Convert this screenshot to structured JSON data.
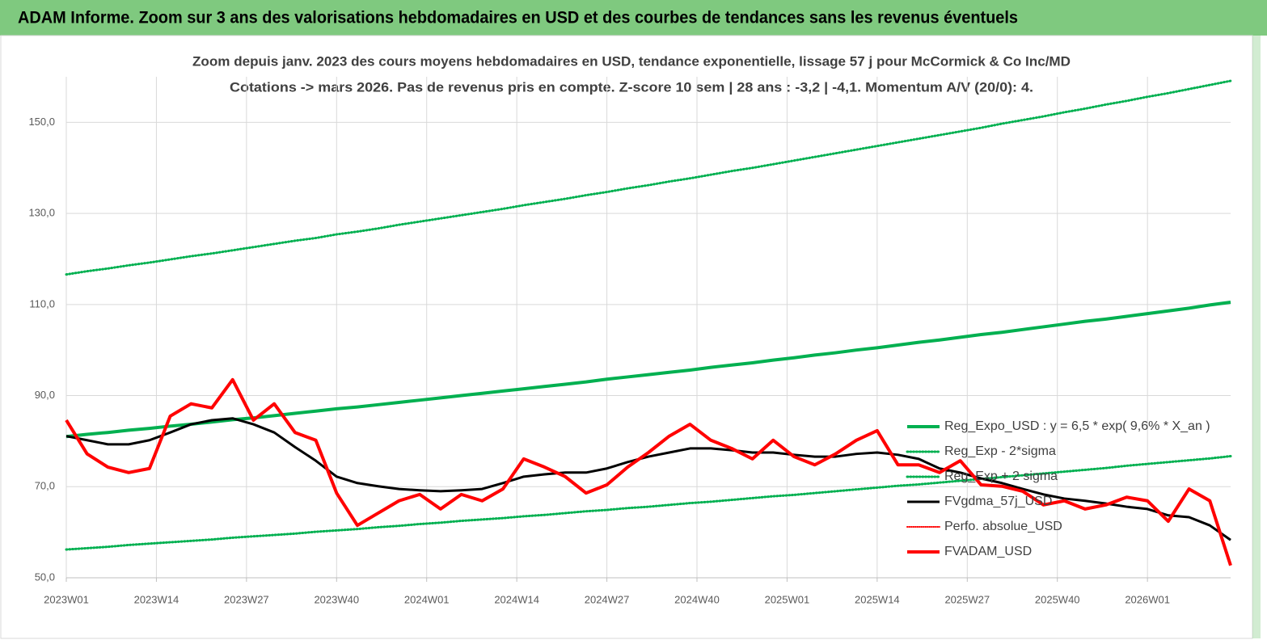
{
  "chart_data": {
    "type": "line",
    "title": "ADAM Informe. Zoom sur 3 ans des valorisations hebdomadaires en USD et des courbes de tendances sans les revenus éventuels",
    "subtitle": [
      "Zoom depuis janv. 2023 des cours moyens hebdomadaires en USD, tendance exponentielle, lissage 57 j pour McCormick & Co Inc/MD",
      "Cotations -> mars 2026. Pas de revenus pris en compte. Z-score 10 sem | 28 ans : -3,2 | -4,1. Momentum A/V (20/0): 4."
    ],
    "x": [
      0,
      3,
      6,
      9,
      12,
      15,
      18,
      21,
      24,
      27,
      30,
      33,
      36,
      39,
      42,
      45,
      48,
      51,
      54,
      57,
      60,
      63,
      66,
      69,
      72,
      75,
      78,
      81,
      84,
      87,
      90,
      93,
      96,
      99,
      102,
      105,
      108,
      111,
      114,
      117,
      120,
      123,
      126,
      129,
      132,
      135,
      138,
      141,
      144,
      147,
      150,
      153,
      156,
      159,
      162,
      165,
      168
    ],
    "xlim": [
      0,
      168
    ],
    "xticks": [
      {
        "value": 0,
        "label": "2023W01"
      },
      {
        "value": 13,
        "label": "2023W14"
      },
      {
        "value": 26,
        "label": "2023W27"
      },
      {
        "value": 39,
        "label": "2023W40"
      },
      {
        "value": 52,
        "label": "2024W01"
      },
      {
        "value": 65,
        "label": "2024W14"
      },
      {
        "value": 78,
        "label": "2024W27"
      },
      {
        "value": 91,
        "label": "2024W40"
      },
      {
        "value": 104,
        "label": "2025W01"
      },
      {
        "value": 117,
        "label": "2025W14"
      },
      {
        "value": 130,
        "label": "2025W27"
      },
      {
        "value": 143,
        "label": "2025W40"
      },
      {
        "value": 156,
        "label": "2026W01"
      }
    ],
    "ylim": [
      50,
      160
    ],
    "yticks": [
      {
        "value": 50,
        "label": "50,0"
      },
      {
        "value": 70,
        "label": "70,0"
      },
      {
        "value": 90,
        "label": "90,0"
      },
      {
        "value": 110,
        "label": "110,0"
      },
      {
        "value": 130,
        "label": "130,0"
      },
      {
        "value": 150,
        "label": "150,0"
      }
    ],
    "grid": true,
    "legend": "lower right",
    "series": [
      {
        "name": "Reg_Expo_USD : y = 6,5 * exp( 9,6% *  X_an )",
        "color": "#00b050",
        "style": "solid",
        "width": 4,
        "values": [
          81.0,
          81.5,
          81.9,
          82.4,
          82.8,
          83.3,
          83.7,
          84.2,
          84.7,
          85.1,
          85.6,
          86.1,
          86.6,
          87.1,
          87.5,
          88.0,
          88.5,
          89.0,
          89.5,
          90.0,
          90.5,
          91.0,
          91.5,
          92.0,
          92.5,
          93.0,
          93.6,
          94.1,
          94.6,
          95.1,
          95.6,
          96.2,
          96.7,
          97.2,
          97.8,
          98.3,
          98.9,
          99.4,
          100.0,
          100.5,
          101.1,
          101.7,
          102.2,
          102.8,
          103.4,
          103.9,
          104.5,
          105.1,
          105.7,
          106.3,
          106.8,
          107.4,
          108.0,
          108.6,
          109.2,
          109.9,
          110.5
        ]
      },
      {
        "name": "Reg_Exp - 2*sigma",
        "color": "#00b050",
        "style": "dotted",
        "width": 3,
        "values": [
          56.2,
          56.5,
          56.8,
          57.2,
          57.5,
          57.8,
          58.1,
          58.4,
          58.8,
          59.1,
          59.4,
          59.7,
          60.1,
          60.4,
          60.7,
          61.1,
          61.4,
          61.8,
          62.1,
          62.5,
          62.8,
          63.1,
          63.5,
          63.8,
          64.2,
          64.6,
          64.9,
          65.3,
          65.6,
          66.0,
          66.4,
          66.7,
          67.1,
          67.5,
          67.9,
          68.2,
          68.6,
          69.0,
          69.4,
          69.8,
          70.2,
          70.5,
          70.9,
          71.3,
          71.7,
          72.1,
          72.5,
          72.9,
          73.3,
          73.7,
          74.1,
          74.6,
          75.0,
          75.4,
          75.8,
          76.2,
          76.7
        ]
      },
      {
        "name": "Reg_Exp + 2 sigma",
        "color": "#00b050",
        "style": "dotted",
        "width": 3,
        "values": [
          116.6,
          117.3,
          117.9,
          118.6,
          119.2,
          119.9,
          120.6,
          121.2,
          121.9,
          122.6,
          123.3,
          124.0,
          124.6,
          125.4,
          126.0,
          126.7,
          127.5,
          128.2,
          128.9,
          129.6,
          130.3,
          131.0,
          131.8,
          132.5,
          133.2,
          134.0,
          134.7,
          135.5,
          136.2,
          137.0,
          137.7,
          138.5,
          139.3,
          140.0,
          140.8,
          141.6,
          142.4,
          143.2,
          144.0,
          144.8,
          145.6,
          146.4,
          147.2,
          148.0,
          148.8,
          149.7,
          150.5,
          151.3,
          152.2,
          153.0,
          153.9,
          154.7,
          155.6,
          156.4,
          157.3,
          158.2,
          159.1
        ]
      },
      {
        "name": "FVgdma_57j_USD",
        "color": "#000000",
        "style": "solid",
        "width": 3,
        "values": [
          81.1,
          80.2,
          79.3,
          79.3,
          80.2,
          81.9,
          83.7,
          84.6,
          85.0,
          83.7,
          81.9,
          78.7,
          75.7,
          72.2,
          70.8,
          70.1,
          69.5,
          69.2,
          69.0,
          69.2,
          69.5,
          70.8,
          72.2,
          72.7,
          73.1,
          73.1,
          74.0,
          75.4,
          76.6,
          77.5,
          78.4,
          78.4,
          78.0,
          77.5,
          77.5,
          77.0,
          76.6,
          76.6,
          77.2,
          77.5,
          77.0,
          76.1,
          74.0,
          73.1,
          71.8,
          70.8,
          69.5,
          68.3,
          67.4,
          66.9,
          66.3,
          65.6,
          65.1,
          63.7,
          63.3,
          61.5,
          58.3
        ]
      },
      {
        "name": "Perfo. absolue_USD",
        "color": "#ff0000",
        "style": "dotted",
        "width": 2,
        "values": [
          null,
          null,
          null,
          null,
          null,
          null,
          null,
          null,
          null,
          null,
          null,
          null,
          null,
          null,
          null,
          null,
          null,
          null,
          null,
          null,
          null,
          null,
          null,
          null,
          null,
          null,
          null,
          null,
          null,
          null,
          null,
          null,
          null,
          null,
          null,
          null,
          null,
          null,
          null,
          null,
          null,
          null,
          null,
          null,
          null,
          null,
          null,
          null,
          null,
          null,
          null,
          null,
          null,
          null,
          null,
          null,
          null
        ]
      },
      {
        "name": "FVADAM_USD",
        "color": "#ff0000",
        "style": "solid",
        "width": 4,
        "values": [
          84.6,
          77.2,
          74.3,
          73.1,
          74.0,
          85.5,
          88.2,
          87.3,
          93.5,
          84.6,
          88.2,
          81.9,
          80.2,
          68.6,
          61.5,
          64.2,
          66.9,
          68.3,
          65.1,
          68.3,
          66.9,
          69.5,
          76.1,
          74.3,
          72.2,
          68.6,
          70.4,
          74.3,
          77.5,
          81.1,
          83.7,
          80.2,
          78.4,
          76.1,
          80.2,
          76.6,
          74.8,
          77.2,
          80.2,
          82.3,
          74.8,
          74.8,
          73.1,
          75.7,
          70.4,
          70.1,
          69.0,
          66.0,
          66.9,
          65.1,
          66.0,
          67.7,
          66.9,
          62.4,
          69.5,
          66.9,
          52.7
        ]
      }
    ]
  }
}
